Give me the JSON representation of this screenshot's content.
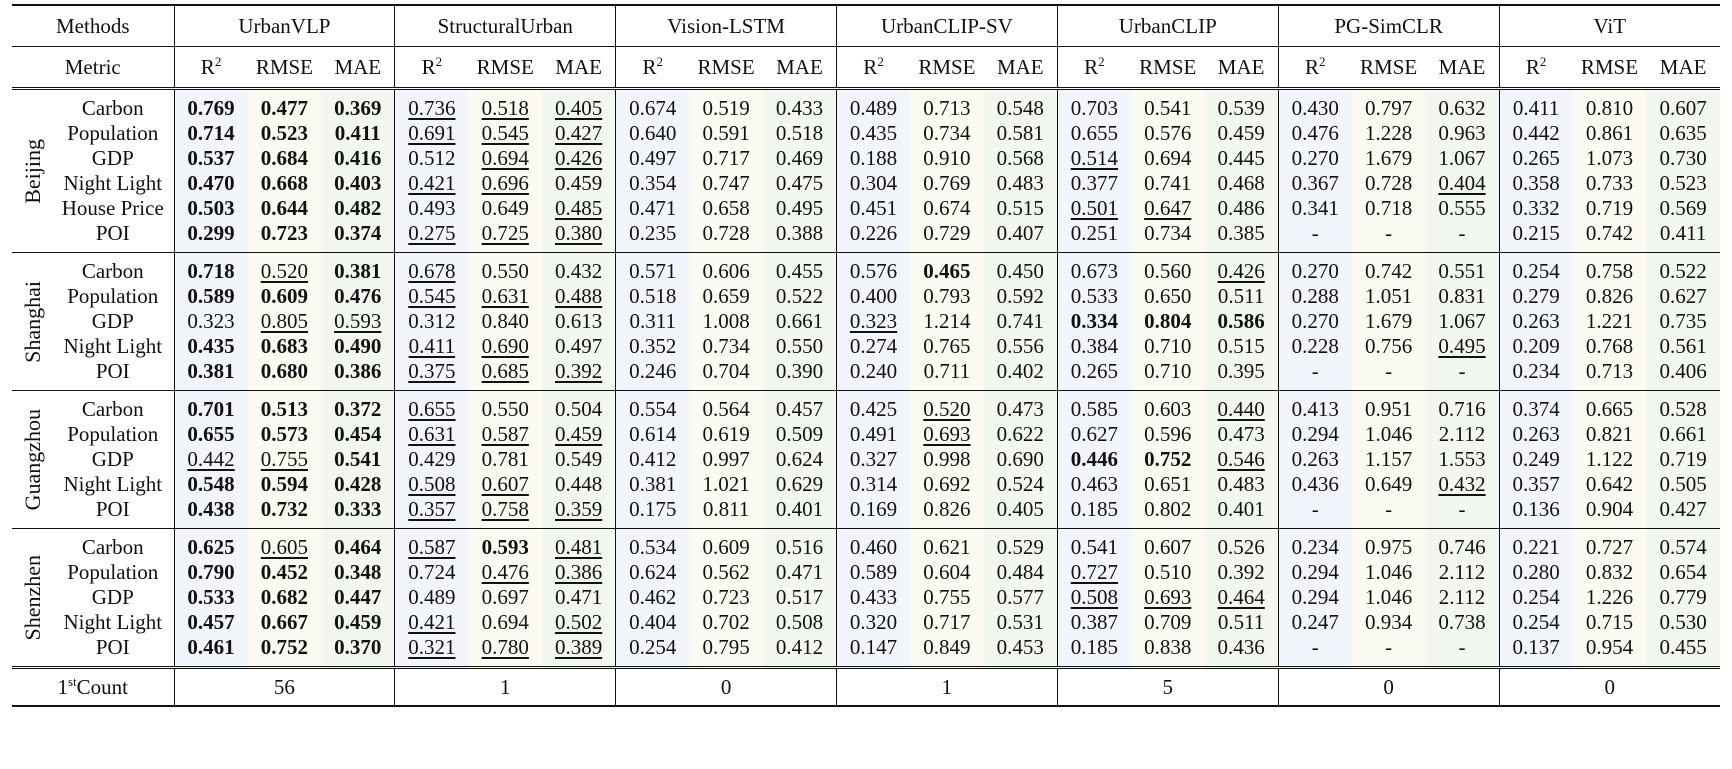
{
  "header": {
    "methods_label": "Methods",
    "metric_label": "Metric",
    "methods": [
      "UrbanVLP",
      "StructuralUrban",
      "Vision-LSTM",
      "UrbanCLIP-SV",
      "UrbanCLIP",
      "PG-SimCLR",
      "ViT"
    ],
    "metrics": [
      {
        "text": "R",
        "sup": "2"
      },
      {
        "text": "RMSE"
      },
      {
        "text": "MAE"
      }
    ]
  },
  "groups": [
    {
      "city": "Beijing",
      "rows": [
        {
          "label": "Carbon",
          "values": [
            "0.769",
            "0.477",
            "0.369",
            "0.736",
            "0.518",
            "0.405",
            "0.674",
            "0.519",
            "0.433",
            "0.489",
            "0.713",
            "0.548",
            "0.703",
            "0.541",
            "0.539",
            "0.430",
            "0.797",
            "0.632",
            "0.411",
            "0.810",
            "0.607"
          ],
          "bold": [
            0,
            1,
            2
          ],
          "underline": [
            3,
            4,
            5
          ]
        },
        {
          "label": "Population",
          "values": [
            "0.714",
            "0.523",
            "0.411",
            "0.691",
            "0.545",
            "0.427",
            "0.640",
            "0.591",
            "0.518",
            "0.435",
            "0.734",
            "0.581",
            "0.655",
            "0.576",
            "0.459",
            "0.476",
            "1.228",
            "0.963",
            "0.442",
            "0.861",
            "0.635"
          ],
          "bold": [
            0,
            1,
            2
          ],
          "underline": [
            3,
            4,
            5
          ]
        },
        {
          "label": "GDP",
          "values": [
            "0.537",
            "0.684",
            "0.416",
            "0.512",
            "0.694",
            "0.426",
            "0.497",
            "0.717",
            "0.469",
            "0.188",
            "0.910",
            "0.568",
            "0.514",
            "0.694",
            "0.445",
            "0.270",
            "1.679",
            "1.067",
            "0.265",
            "1.073",
            "0.730"
          ],
          "bold": [
            0,
            1,
            2
          ],
          "underline": [
            4,
            5,
            12
          ]
        },
        {
          "label": "Night Light",
          "values": [
            "0.470",
            "0.668",
            "0.403",
            "0.421",
            "0.696",
            "0.459",
            "0.354",
            "0.747",
            "0.475",
            "0.304",
            "0.769",
            "0.483",
            "0.377",
            "0.741",
            "0.468",
            "0.367",
            "0.728",
            "0.404",
            "0.358",
            "0.733",
            "0.523"
          ],
          "bold": [
            0,
            1,
            2
          ],
          "underline": [
            3,
            4,
            17
          ]
        },
        {
          "label": "House Price",
          "values": [
            "0.503",
            "0.644",
            "0.482",
            "0.493",
            "0.649",
            "0.485",
            "0.471",
            "0.658",
            "0.495",
            "0.451",
            "0.674",
            "0.515",
            "0.501",
            "0.647",
            "0.486",
            "0.341",
            "0.718",
            "0.555",
            "0.332",
            "0.719",
            "0.569"
          ],
          "bold": [
            0,
            1,
            2
          ],
          "underline": [
            5,
            12,
            13
          ]
        },
        {
          "label": "POI",
          "values": [
            "0.299",
            "0.723",
            "0.374",
            "0.275",
            "0.725",
            "0.380",
            "0.235",
            "0.728",
            "0.388",
            "0.226",
            "0.729",
            "0.407",
            "0.251",
            "0.734",
            "0.385",
            "-",
            "-",
            "-",
            "0.215",
            "0.742",
            "0.411"
          ],
          "bold": [
            0,
            1,
            2
          ],
          "underline": [
            3,
            4,
            5
          ]
        }
      ]
    },
    {
      "city": "Shanghai",
      "rows": [
        {
          "label": "Carbon",
          "values": [
            "0.718",
            "0.520",
            "0.381",
            "0.678",
            "0.550",
            "0.432",
            "0.571",
            "0.606",
            "0.455",
            "0.576",
            "0.465",
            "0.450",
            "0.673",
            "0.560",
            "0.426",
            "0.270",
            "0.742",
            "0.551",
            "0.254",
            "0.758",
            "0.522"
          ],
          "bold": [
            0,
            2,
            10
          ],
          "underline": [
            1,
            3,
            14
          ]
        },
        {
          "label": "Population",
          "values": [
            "0.589",
            "0.609",
            "0.476",
            "0.545",
            "0.631",
            "0.488",
            "0.518",
            "0.659",
            "0.522",
            "0.400",
            "0.793",
            "0.592",
            "0.533",
            "0.650",
            "0.511",
            "0.288",
            "1.051",
            "0.831",
            "0.279",
            "0.826",
            "0.627"
          ],
          "bold": [
            0,
            1,
            2
          ],
          "underline": [
            3,
            4,
            5
          ]
        },
        {
          "label": "GDP",
          "values": [
            "0.323",
            "0.805",
            "0.593",
            "0.312",
            "0.840",
            "0.613",
            "0.311",
            "1.008",
            "0.661",
            "0.323",
            "1.214",
            "0.741",
            "0.334",
            "0.804",
            "0.586",
            "0.270",
            "1.679",
            "1.067",
            "0.263",
            "1.221",
            "0.735"
          ],
          "bold": [
            12,
            13,
            14
          ],
          "underline": [
            1,
            2,
            9
          ]
        },
        {
          "label": "Night Light",
          "values": [
            "0.435",
            "0.683",
            "0.490",
            "0.411",
            "0.690",
            "0.497",
            "0.352",
            "0.734",
            "0.550",
            "0.274",
            "0.765",
            "0.556",
            "0.384",
            "0.710",
            "0.515",
            "0.228",
            "0.756",
            "0.495",
            "0.209",
            "0.768",
            "0.561"
          ],
          "bold": [
            0,
            1,
            2
          ],
          "underline": [
            3,
            4,
            17
          ]
        },
        {
          "label": "POI",
          "values": [
            "0.381",
            "0.680",
            "0.386",
            "0.375",
            "0.685",
            "0.392",
            "0.246",
            "0.704",
            "0.390",
            "0.240",
            "0.711",
            "0.402",
            "0.265",
            "0.710",
            "0.395",
            "-",
            "-",
            "-",
            "0.234",
            "0.713",
            "0.406"
          ],
          "bold": [
            0,
            1,
            2
          ],
          "underline": [
            3,
            4,
            5
          ]
        }
      ]
    },
    {
      "city": "Guangzhou",
      "rows": [
        {
          "label": "Carbon",
          "values": [
            "0.701",
            "0.513",
            "0.372",
            "0.655",
            "0.550",
            "0.504",
            "0.554",
            "0.564",
            "0.457",
            "0.425",
            "0.520",
            "0.473",
            "0.585",
            "0.603",
            "0.440",
            "0.413",
            "0.951",
            "0.716",
            "0.374",
            "0.665",
            "0.528"
          ],
          "bold": [
            0,
            1,
            2
          ],
          "underline": [
            3,
            10,
            14
          ]
        },
        {
          "label": "Population",
          "values": [
            "0.655",
            "0.573",
            "0.454",
            "0.631",
            "0.587",
            "0.459",
            "0.614",
            "0.619",
            "0.509",
            "0.491",
            "0.693",
            "0.622",
            "0.627",
            "0.596",
            "0.473",
            "0.294",
            "1.046",
            "2.112",
            "0.263",
            "0.821",
            "0.661"
          ],
          "bold": [
            0,
            1,
            2
          ],
          "underline": [
            3,
            4,
            5,
            10
          ]
        },
        {
          "label": "GDP",
          "values": [
            "0.442",
            "0.755",
            "0.541",
            "0.429",
            "0.781",
            "0.549",
            "0.412",
            "0.997",
            "0.624",
            "0.327",
            "0.998",
            "0.690",
            "0.446",
            "0.752",
            "0.546",
            "0.263",
            "1.157",
            "1.553",
            "0.249",
            "1.122",
            "0.719"
          ],
          "bold": [
            2,
            12,
            13
          ],
          "underline": [
            0,
            1,
            14
          ]
        },
        {
          "label": "Night Light",
          "values": [
            "0.548",
            "0.594",
            "0.428",
            "0.508",
            "0.607",
            "0.448",
            "0.381",
            "1.021",
            "0.629",
            "0.314",
            "0.692",
            "0.524",
            "0.463",
            "0.651",
            "0.483",
            "0.436",
            "0.649",
            "0.432",
            "0.357",
            "0.642",
            "0.505"
          ],
          "bold": [
            0,
            1,
            2
          ],
          "underline": [
            3,
            4,
            17
          ]
        },
        {
          "label": "POI",
          "values": [
            "0.438",
            "0.732",
            "0.333",
            "0.357",
            "0.758",
            "0.359",
            "0.175",
            "0.811",
            "0.401",
            "0.169",
            "0.826",
            "0.405",
            "0.185",
            "0.802",
            "0.401",
            "-",
            "-",
            "-",
            "0.136",
            "0.904",
            "0.427"
          ],
          "bold": [
            0,
            1,
            2
          ],
          "underline": [
            3,
            4,
            5
          ]
        }
      ]
    },
    {
      "city": "Shenzhen",
      "rows": [
        {
          "label": "Carbon",
          "values": [
            "0.625",
            "0.605",
            "0.464",
            "0.587",
            "0.593",
            "0.481",
            "0.534",
            "0.609",
            "0.516",
            "0.460",
            "0.621",
            "0.529",
            "0.541",
            "0.607",
            "0.526",
            "0.234",
            "0.975",
            "0.746",
            "0.221",
            "0.727",
            "0.574"
          ],
          "bold": [
            0,
            2,
            4
          ],
          "underline": [
            1,
            3,
            5
          ]
        },
        {
          "label": "Population",
          "values": [
            "0.790",
            "0.452",
            "0.348",
            "0.724",
            "0.476",
            "0.386",
            "0.624",
            "0.562",
            "0.471",
            "0.589",
            "0.604",
            "0.484",
            "0.727",
            "0.510",
            "0.392",
            "0.294",
            "1.046",
            "2.112",
            "0.280",
            "0.832",
            "0.654"
          ],
          "bold": [
            0,
            1,
            2
          ],
          "underline": [
            4,
            5,
            12
          ]
        },
        {
          "label": "GDP",
          "values": [
            "0.533",
            "0.682",
            "0.447",
            "0.489",
            "0.697",
            "0.471",
            "0.462",
            "0.723",
            "0.517",
            "0.433",
            "0.755",
            "0.577",
            "0.508",
            "0.693",
            "0.464",
            "0.294",
            "1.046",
            "2.112",
            "0.254",
            "1.226",
            "0.779"
          ],
          "bold": [
            0,
            1,
            2
          ],
          "underline": [
            12,
            13,
            14
          ]
        },
        {
          "label": "Night Light",
          "values": [
            "0.457",
            "0.667",
            "0.459",
            "0.421",
            "0.694",
            "0.502",
            "0.404",
            "0.702",
            "0.508",
            "0.320",
            "0.717",
            "0.531",
            "0.387",
            "0.709",
            "0.511",
            "0.247",
            "0.934",
            "0.738",
            "0.254",
            "0.715",
            "0.530"
          ],
          "bold": [
            0,
            1,
            2
          ],
          "underline": [
            3,
            5
          ]
        },
        {
          "label": "POI",
          "values": [
            "0.461",
            "0.752",
            "0.370",
            "0.321",
            "0.780",
            "0.389",
            "0.254",
            "0.795",
            "0.412",
            "0.147",
            "0.849",
            "0.453",
            "0.185",
            "0.838",
            "0.436",
            "-",
            "-",
            "-",
            "0.137",
            "0.954",
            "0.455"
          ],
          "bold": [
            0,
            1,
            2
          ],
          "underline": [
            3,
            4,
            5
          ]
        }
      ]
    }
  ],
  "count": {
    "label": {
      "text": "1",
      "sup": "st",
      "rest": "Count"
    },
    "values": [
      "56",
      "1",
      "0",
      "1",
      "5",
      "0",
      "0"
    ]
  }
}
